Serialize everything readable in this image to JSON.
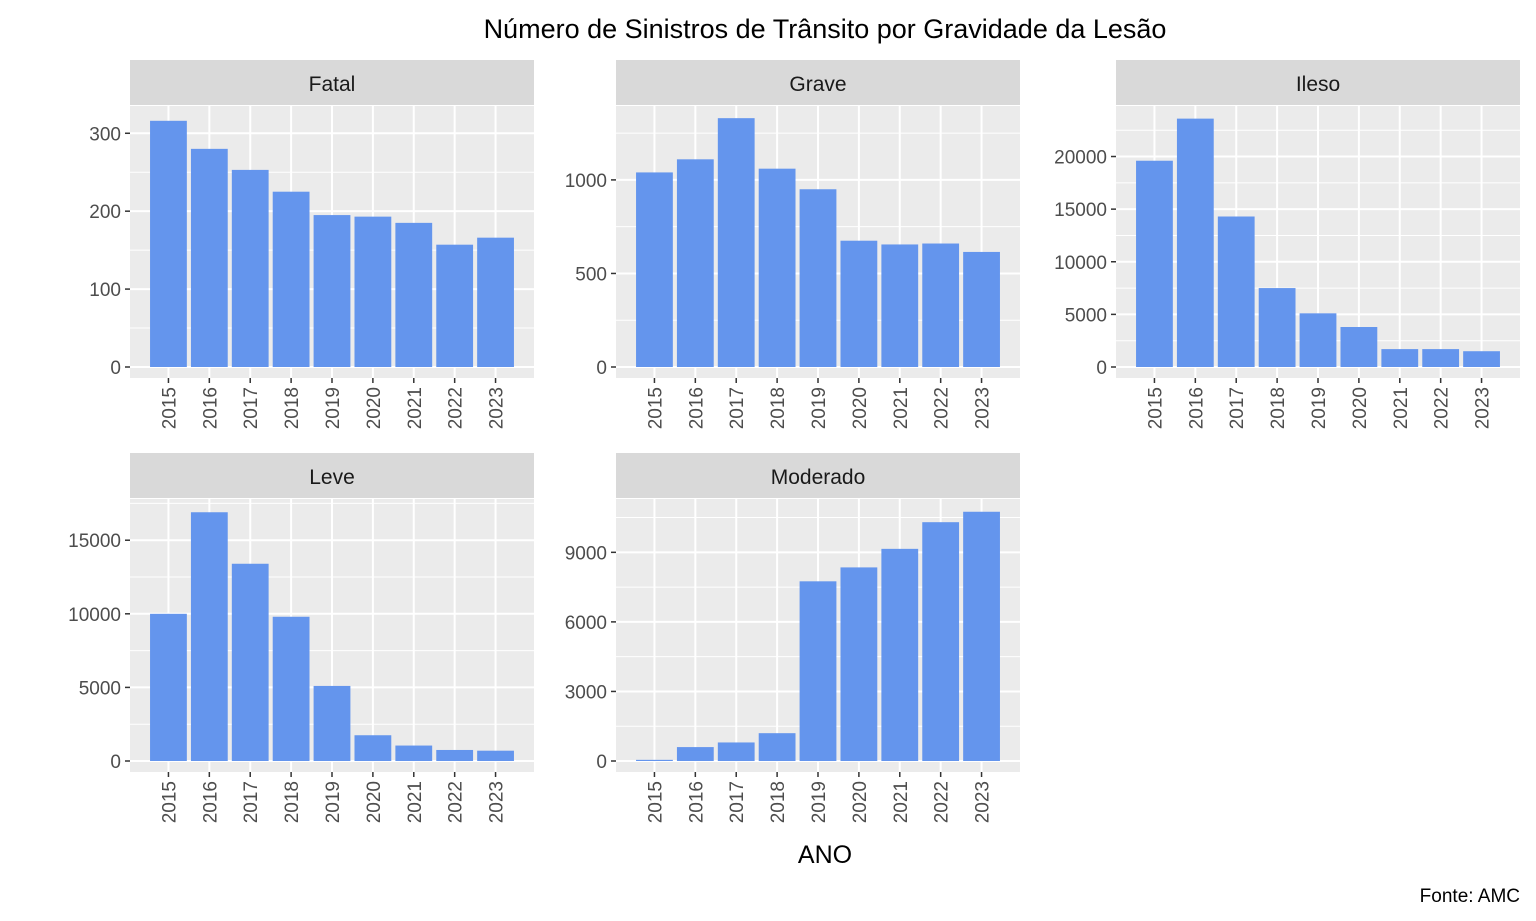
{
  "chart_data": {
    "type": "bar",
    "title": "Número de Sinistros de Trânsito por Gravidade da Lesão",
    "xlabel": "ANO",
    "ylabel": "",
    "caption": "Fonte: AMC",
    "bar_color": "#6495ED",
    "panel_background": "#EBEBEB",
    "strip_background": "#D9D9D9",
    "grid": true,
    "categories": [
      "2015",
      "2016",
      "2017",
      "2018",
      "2019",
      "2020",
      "2021",
      "2022",
      "2023"
    ],
    "facets": [
      {
        "name": "Fatal",
        "values": [
          316,
          280,
          253,
          225,
          195,
          193,
          185,
          157,
          166
        ],
        "ylim": [
          0,
          335
        ],
        "yticks": [
          0,
          100,
          200,
          300
        ],
        "ytick_labels": [
          "0",
          "100",
          "200",
          "300"
        ]
      },
      {
        "name": "Grave",
        "values": [
          1040,
          1110,
          1330,
          1060,
          950,
          675,
          655,
          660,
          615
        ],
        "ylim": [
          0,
          1395
        ],
        "yticks": [
          0,
          500,
          1000
        ],
        "ytick_labels": [
          "0",
          "500",
          "1000"
        ]
      },
      {
        "name": "Ileso",
        "values": [
          19600,
          23600,
          14300,
          7500,
          5100,
          3800,
          1700,
          1700,
          1500
        ],
        "ylim": [
          0,
          24800
        ],
        "yticks": [
          0,
          5000,
          10000,
          15000,
          20000
        ],
        "ytick_labels": [
          "0",
          "5000",
          "10000",
          "15000",
          "20000"
        ]
      },
      {
        "name": "Leve",
        "values": [
          10000,
          16900,
          13400,
          9800,
          5100,
          1750,
          1050,
          750,
          700
        ],
        "ylim": [
          0,
          17800
        ],
        "yticks": [
          0,
          5000,
          10000,
          15000
        ],
        "ytick_labels": [
          "0",
          "5000",
          "10000",
          "15000"
        ]
      },
      {
        "name": "Moderado",
        "values": [
          50,
          600,
          800,
          1200,
          7750,
          8350,
          9150,
          10300,
          10750
        ],
        "ylim": [
          0,
          11300
        ],
        "yticks": [
          0,
          3000,
          6000,
          9000
        ],
        "ytick_labels": [
          "0",
          "3000",
          "6000",
          "9000"
        ]
      }
    ]
  }
}
